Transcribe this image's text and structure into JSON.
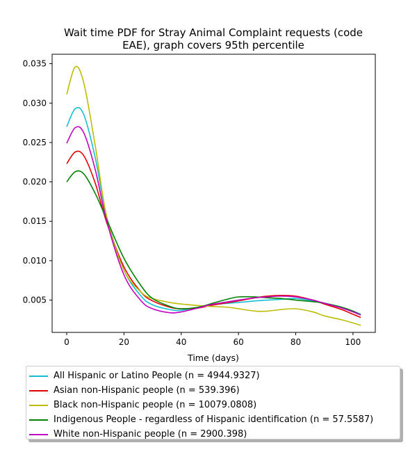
{
  "chart_data": {
    "type": "line",
    "title_lines": [
      "Wait time PDF for Stray Animal Complaint  requests (code",
      "EAE), graph covers 95th percentile"
    ],
    "xlabel": "Time (days)",
    "ylabel": "",
    "xlim": [
      -5.1,
      107.8
    ],
    "ylim": [
      0.0009,
      0.0362
    ],
    "xticks": [
      0,
      20,
      40,
      60,
      80,
      100
    ],
    "xtick_labels": [
      "0",
      "20",
      "40",
      "60",
      "80",
      "100"
    ],
    "yticks": [
      0.005,
      0.01,
      0.015,
      0.02,
      0.025,
      0.03,
      0.035
    ],
    "ytick_labels": [
      "0.005",
      "0.010",
      "0.015",
      "0.020",
      "0.025",
      "0.030",
      "0.035"
    ],
    "grid": false,
    "legend_position": "below plot",
    "series": [
      {
        "name": "All Hispanic or Latino People (n = 4944.9327)",
        "color": "#17becf",
        "x": [
          0,
          3,
          6,
          10,
          14,
          20,
          26,
          30,
          36,
          40,
          46,
          50,
          60,
          66,
          70,
          75,
          80,
          86,
          90,
          96,
          100,
          102.7
        ],
        "y": [
          0.027,
          0.0293,
          0.0285,
          0.023,
          0.0155,
          0.0088,
          0.0055,
          0.0044,
          0.0038,
          0.0037,
          0.0041,
          0.0044,
          0.0047,
          0.0049,
          0.005,
          0.0051,
          0.0052,
          0.0049,
          0.0046,
          0.0041,
          0.0036,
          0.0032
        ]
      },
      {
        "name": "Asian non-Hispanic people (n = 539.396)",
        "color": "#e00000",
        "x": [
          0,
          3,
          6,
          10,
          14,
          20,
          26,
          30,
          36,
          40,
          46,
          50,
          60,
          66,
          70,
          75,
          80,
          86,
          90,
          96,
          100,
          102.7
        ],
        "y": [
          0.0223,
          0.0238,
          0.0233,
          0.0198,
          0.0148,
          0.0092,
          0.006,
          0.0049,
          0.0041,
          0.0039,
          0.004,
          0.0043,
          0.0049,
          0.0053,
          0.0055,
          0.0056,
          0.0055,
          0.005,
          0.0045,
          0.0038,
          0.0032,
          0.0028
        ]
      },
      {
        "name": "Black non-Hispanic people (n = 10079.0808)",
        "color": "#bcbd00",
        "x": [
          0,
          3,
          6,
          10,
          14,
          20,
          26,
          30,
          36,
          40,
          46,
          50,
          56,
          60,
          66,
          70,
          75,
          80,
          86,
          90,
          96,
          100,
          102.7
        ],
        "y": [
          0.0311,
          0.0346,
          0.0325,
          0.0245,
          0.0155,
          0.0088,
          0.006,
          0.0052,
          0.0047,
          0.0045,
          0.0043,
          0.0042,
          0.0041,
          0.0039,
          0.0036,
          0.0036,
          0.0038,
          0.0039,
          0.0035,
          0.003,
          0.0025,
          0.0021,
          0.0018
        ]
      },
      {
        "name": "Indigenous People - regardless of Hispanic identification (n = 57.5587)",
        "color": "#008000",
        "x": [
          0,
          3,
          6,
          10,
          14,
          20,
          26,
          30,
          36,
          40,
          46,
          50,
          56,
          60,
          66,
          70,
          75,
          80,
          86,
          90,
          96,
          100,
          102.7
        ],
        "y": [
          0.02,
          0.0213,
          0.021,
          0.0185,
          0.0152,
          0.0103,
          0.0068,
          0.0052,
          0.0042,
          0.0039,
          0.0041,
          0.0045,
          0.0051,
          0.0054,
          0.0054,
          0.0053,
          0.0052,
          0.005,
          0.0048,
          0.0046,
          0.0041,
          0.0036,
          0.0031
        ]
      },
      {
        "name": "White non-Hispanic people (n = 2900.398)",
        "color": "#c000c0",
        "x": [
          0,
          3,
          6,
          10,
          14,
          20,
          26,
          30,
          36,
          40,
          46,
          50,
          60,
          66,
          70,
          75,
          80,
          86,
          90,
          96,
          100,
          102.7
        ],
        "y": [
          0.0249,
          0.0269,
          0.0262,
          0.0215,
          0.015,
          0.0082,
          0.0049,
          0.0039,
          0.0034,
          0.0035,
          0.004,
          0.0044,
          0.005,
          0.0053,
          0.0054,
          0.0055,
          0.0054,
          0.005,
          0.0046,
          0.004,
          0.0035,
          0.0031
        ]
      }
    ]
  }
}
